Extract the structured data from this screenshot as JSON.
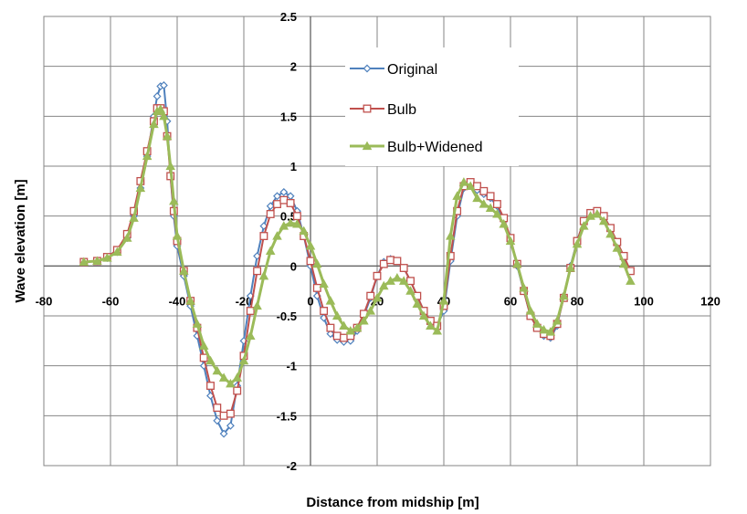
{
  "chart_data": {
    "type": "line",
    "title": "",
    "xlabel": "Distance from midship [m]",
    "ylabel": "Wave elevation [m]",
    "xlim": [
      -80,
      120
    ],
    "ylim": [
      -2,
      2.5
    ],
    "xticks": [
      -80,
      -60,
      -40,
      -20,
      0,
      20,
      40,
      60,
      80,
      100,
      120
    ],
    "yticks": [
      -2,
      -1.5,
      -1,
      -0.5,
      0,
      0.5,
      1,
      1.5,
      2,
      2.5
    ],
    "x_tick_labels": [
      "-80",
      "-60",
      "-40",
      "-20",
      "0",
      "20",
      "40",
      "60",
      "80",
      "100",
      "120"
    ],
    "y_tick_labels": [
      "-2",
      "-1.5",
      "-1",
      "-0.5",
      "0",
      "0.5",
      "1",
      "1.5",
      "2",
      "2.5"
    ],
    "grid": true,
    "legend_position": "upper-center",
    "series": [
      {
        "name": "Original",
        "color": "#4f81bd",
        "marker": "diamond",
        "points": [
          [
            -68,
            0.04
          ],
          [
            -64,
            0.05
          ],
          [
            -61,
            0.08
          ],
          [
            -58,
            0.14
          ],
          [
            -55,
            0.28
          ],
          [
            -53,
            0.5
          ],
          [
            -51,
            0.78
          ],
          [
            -49,
            1.1
          ],
          [
            -47,
            1.5
          ],
          [
            -46,
            1.7
          ],
          [
            -45,
            1.8
          ],
          [
            -44,
            1.81
          ],
          [
            -43,
            1.45
          ],
          [
            -42,
            0.9
          ],
          [
            -41,
            0.5
          ],
          [
            -40,
            0.2
          ],
          [
            -38,
            -0.1
          ],
          [
            -36,
            -0.4
          ],
          [
            -34,
            -0.7
          ],
          [
            -32,
            -1.0
          ],
          [
            -30,
            -1.3
          ],
          [
            -28,
            -1.55
          ],
          [
            -26,
            -1.68
          ],
          [
            -24,
            -1.6
          ],
          [
            -22,
            -1.2
          ],
          [
            -20,
            -0.75
          ],
          [
            -18,
            -0.3
          ],
          [
            -16,
            0.1
          ],
          [
            -14,
            0.4
          ],
          [
            -12,
            0.6
          ],
          [
            -10,
            0.7
          ],
          [
            -8,
            0.74
          ],
          [
            -6,
            0.7
          ],
          [
            -4,
            0.55
          ],
          [
            -2,
            0.3
          ],
          [
            0,
            0.0
          ],
          [
            2,
            -0.3
          ],
          [
            4,
            -0.52
          ],
          [
            6,
            -0.68
          ],
          [
            8,
            -0.74
          ],
          [
            10,
            -0.76
          ],
          [
            12,
            -0.75
          ],
          [
            14,
            -0.65
          ],
          [
            16,
            -0.5
          ],
          [
            18,
            -0.32
          ],
          [
            20,
            -0.1
          ],
          [
            22,
            0.04
          ],
          [
            24,
            0.07
          ],
          [
            26,
            0.05
          ],
          [
            28,
            -0.02
          ],
          [
            30,
            -0.15
          ],
          [
            32,
            -0.3
          ],
          [
            34,
            -0.45
          ],
          [
            36,
            -0.55
          ],
          [
            38,
            -0.6
          ],
          [
            40,
            -0.45
          ],
          [
            42,
            0.05
          ],
          [
            44,
            0.5
          ],
          [
            46,
            0.78
          ],
          [
            48,
            0.82
          ],
          [
            50,
            0.76
          ],
          [
            52,
            0.72
          ],
          [
            54,
            0.68
          ],
          [
            56,
            0.6
          ],
          [
            58,
            0.45
          ],
          [
            60,
            0.25
          ],
          [
            62,
            0.0
          ],
          [
            64,
            -0.25
          ],
          [
            66,
            -0.5
          ],
          [
            68,
            -0.62
          ],
          [
            70,
            -0.7
          ],
          [
            72,
            -0.72
          ],
          [
            74,
            -0.6
          ],
          [
            76,
            -0.3
          ],
          [
            78,
            0.0
          ],
          [
            80,
            0.25
          ],
          [
            82,
            0.45
          ],
          [
            84,
            0.53
          ],
          [
            86,
            0.55
          ],
          [
            88,
            0.5
          ],
          [
            90,
            0.38
          ],
          [
            92,
            0.22
          ],
          [
            94,
            0.08
          ],
          [
            96,
            -0.05
          ]
        ]
      },
      {
        "name": "Bulb",
        "color": "#c0504d",
        "marker": "square",
        "points": [
          [
            -68,
            0.04
          ],
          [
            -64,
            0.05
          ],
          [
            -61,
            0.09
          ],
          [
            -58,
            0.16
          ],
          [
            -55,
            0.32
          ],
          [
            -53,
            0.55
          ],
          [
            -51,
            0.85
          ],
          [
            -49,
            1.15
          ],
          [
            -47,
            1.45
          ],
          [
            -46,
            1.58
          ],
          [
            -45,
            1.58
          ],
          [
            -44,
            1.55
          ],
          [
            -43,
            1.3
          ],
          [
            -42,
            0.9
          ],
          [
            -41,
            0.55
          ],
          [
            -40,
            0.25
          ],
          [
            -38,
            -0.05
          ],
          [
            -36,
            -0.35
          ],
          [
            -34,
            -0.62
          ],
          [
            -32,
            -0.92
          ],
          [
            -30,
            -1.2
          ],
          [
            -28,
            -1.42
          ],
          [
            -26,
            -1.5
          ],
          [
            -24,
            -1.48
          ],
          [
            -22,
            -1.25
          ],
          [
            -20,
            -0.9
          ],
          [
            -18,
            -0.45
          ],
          [
            -16,
            -0.05
          ],
          [
            -14,
            0.3
          ],
          [
            -12,
            0.52
          ],
          [
            -10,
            0.62
          ],
          [
            -8,
            0.66
          ],
          [
            -6,
            0.63
          ],
          [
            -4,
            0.5
          ],
          [
            -2,
            0.3
          ],
          [
            0,
            0.05
          ],
          [
            2,
            -0.22
          ],
          [
            4,
            -0.45
          ],
          [
            6,
            -0.62
          ],
          [
            8,
            -0.7
          ],
          [
            10,
            -0.72
          ],
          [
            12,
            -0.7
          ],
          [
            14,
            -0.62
          ],
          [
            16,
            -0.48
          ],
          [
            18,
            -0.3
          ],
          [
            20,
            -0.1
          ],
          [
            22,
            0.02
          ],
          [
            24,
            0.06
          ],
          [
            26,
            0.05
          ],
          [
            28,
            -0.02
          ],
          [
            30,
            -0.15
          ],
          [
            32,
            -0.3
          ],
          [
            34,
            -0.45
          ],
          [
            36,
            -0.55
          ],
          [
            38,
            -0.6
          ],
          [
            40,
            -0.4
          ],
          [
            42,
            0.1
          ],
          [
            44,
            0.55
          ],
          [
            46,
            0.8
          ],
          [
            48,
            0.84
          ],
          [
            50,
            0.8
          ],
          [
            52,
            0.75
          ],
          [
            54,
            0.7
          ],
          [
            56,
            0.62
          ],
          [
            58,
            0.48
          ],
          [
            60,
            0.28
          ],
          [
            62,
            0.02
          ],
          [
            64,
            -0.25
          ],
          [
            66,
            -0.5
          ],
          [
            68,
            -0.62
          ],
          [
            70,
            -0.68
          ],
          [
            72,
            -0.7
          ],
          [
            74,
            -0.58
          ],
          [
            76,
            -0.32
          ],
          [
            78,
            -0.02
          ],
          [
            80,
            0.25
          ],
          [
            82,
            0.45
          ],
          [
            84,
            0.53
          ],
          [
            86,
            0.55
          ],
          [
            88,
            0.5
          ],
          [
            90,
            0.38
          ],
          [
            92,
            0.24
          ],
          [
            94,
            0.1
          ],
          [
            96,
            -0.05
          ]
        ]
      },
      {
        "name": "Bulb+Widened",
        "color": "#9bbb59",
        "marker": "triangle",
        "points": [
          [
            -68,
            0.04
          ],
          [
            -64,
            0.05
          ],
          [
            -61,
            0.08
          ],
          [
            -58,
            0.14
          ],
          [
            -55,
            0.28
          ],
          [
            -53,
            0.48
          ],
          [
            -51,
            0.78
          ],
          [
            -49,
            1.1
          ],
          [
            -47,
            1.42
          ],
          [
            -46,
            1.55
          ],
          [
            -45,
            1.57
          ],
          [
            -44,
            1.5
          ],
          [
            -43,
            1.3
          ],
          [
            -42,
            1.0
          ],
          [
            -41,
            0.65
          ],
          [
            -40,
            0.3
          ],
          [
            -38,
            -0.05
          ],
          [
            -36,
            -0.35
          ],
          [
            -34,
            -0.58
          ],
          [
            -32,
            -0.8
          ],
          [
            -30,
            -0.95
          ],
          [
            -28,
            -1.05
          ],
          [
            -26,
            -1.12
          ],
          [
            -24,
            -1.18
          ],
          [
            -22,
            -1.12
          ],
          [
            -20,
            -0.95
          ],
          [
            -18,
            -0.7
          ],
          [
            -16,
            -0.4
          ],
          [
            -14,
            -0.1
          ],
          [
            -12,
            0.15
          ],
          [
            -10,
            0.3
          ],
          [
            -8,
            0.4
          ],
          [
            -6,
            0.43
          ],
          [
            -4,
            0.42
          ],
          [
            -2,
            0.35
          ],
          [
            0,
            0.2
          ],
          [
            2,
            0.02
          ],
          [
            4,
            -0.18
          ],
          [
            6,
            -0.35
          ],
          [
            8,
            -0.5
          ],
          [
            10,
            -0.6
          ],
          [
            12,
            -0.65
          ],
          [
            14,
            -0.62
          ],
          [
            16,
            -0.55
          ],
          [
            18,
            -0.45
          ],
          [
            20,
            -0.32
          ],
          [
            22,
            -0.2
          ],
          [
            24,
            -0.15
          ],
          [
            26,
            -0.12
          ],
          [
            28,
            -0.15
          ],
          [
            30,
            -0.25
          ],
          [
            32,
            -0.38
          ],
          [
            34,
            -0.5
          ],
          [
            36,
            -0.6
          ],
          [
            38,
            -0.65
          ],
          [
            40,
            -0.35
          ],
          [
            42,
            0.3
          ],
          [
            44,
            0.7
          ],
          [
            46,
            0.84
          ],
          [
            48,
            0.8
          ],
          [
            50,
            0.68
          ],
          [
            52,
            0.62
          ],
          [
            54,
            0.58
          ],
          [
            56,
            0.52
          ],
          [
            58,
            0.42
          ],
          [
            60,
            0.25
          ],
          [
            62,
            0.02
          ],
          [
            64,
            -0.22
          ],
          [
            66,
            -0.45
          ],
          [
            68,
            -0.58
          ],
          [
            70,
            -0.64
          ],
          [
            72,
            -0.66
          ],
          [
            74,
            -0.55
          ],
          [
            76,
            -0.3
          ],
          [
            78,
            -0.02
          ],
          [
            80,
            0.22
          ],
          [
            82,
            0.4
          ],
          [
            84,
            0.5
          ],
          [
            86,
            0.52
          ],
          [
            88,
            0.45
          ],
          [
            90,
            0.32
          ],
          [
            92,
            0.18
          ],
          [
            94,
            0.02
          ],
          [
            96,
            -0.15
          ]
        ]
      }
    ]
  }
}
